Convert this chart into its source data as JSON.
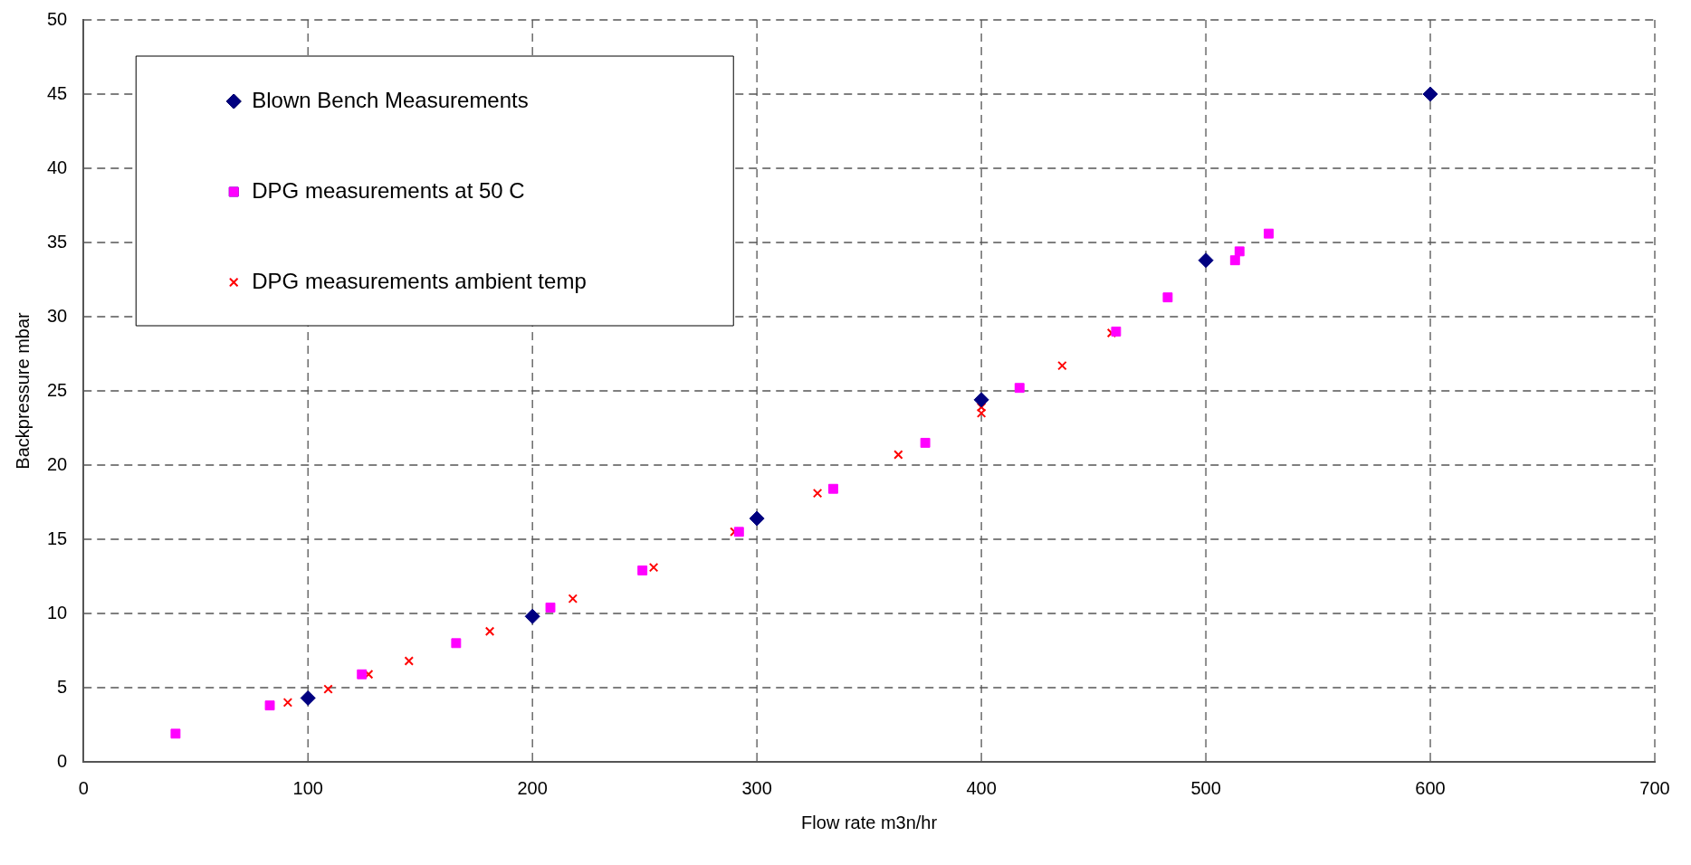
{
  "chart_data": {
    "type": "scatter",
    "xlabel": "Flow rate m3n/hr",
    "ylabel": "Backpressure mbar",
    "xlim": [
      0,
      700
    ],
    "xticks": [
      0,
      100,
      200,
      300,
      400,
      500,
      600,
      700
    ],
    "ylim": [
      0,
      50
    ],
    "yticks": [
      0,
      5,
      10,
      15,
      20,
      25,
      30,
      35,
      40,
      45,
      50
    ],
    "grid": true,
    "legend": "top left",
    "series": [
      {
        "name": "Blown Bench Measurements",
        "color": "#000080",
        "marker": "diamond",
        "x": [
          100,
          200,
          300,
          400,
          500,
          600
        ],
        "values": [
          4.3,
          9.8,
          16.4,
          24.4,
          33.8,
          45
        ]
      },
      {
        "name": "DPG measurements at 50 C",
        "color": "#ff00ff",
        "marker": "square",
        "x": [
          41,
          83,
          124,
          166,
          208,
          249,
          292,
          334,
          375,
          417,
          460,
          483,
          513,
          515,
          528
        ],
        "values": [
          1.9,
          3.8,
          5.9,
          8.0,
          10.4,
          12.9,
          15.5,
          18.4,
          21.5,
          25.2,
          29.0,
          31.3,
          33.8,
          34.4,
          35.6
        ]
      },
      {
        "name": "DPG measurements ambient temp",
        "color": "#ff0000",
        "marker": "cross",
        "x": [
          91,
          109,
          127,
          145,
          181,
          218,
          254,
          290,
          327,
          363,
          400,
          400,
          436,
          458
        ],
        "values": [
          4.0,
          4.9,
          5.9,
          6.8,
          8.8,
          11.0,
          13.1,
          15.5,
          18.1,
          20.7,
          23.5,
          23.9,
          26.7,
          28.9
        ]
      }
    ]
  }
}
